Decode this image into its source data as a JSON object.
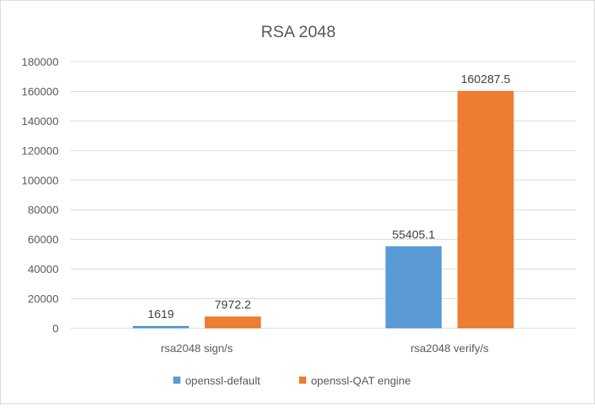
{
  "chart_data": {
    "type": "bar",
    "title": "RSA 2048",
    "categories": [
      "rsa2048 sign/s",
      "rsa2048 verify/s"
    ],
    "series": [
      {
        "name": "openssl-default",
        "values": [
          1619,
          55405.1
        ],
        "labels": [
          "1619",
          "55405.1"
        ],
        "color": "#5B9BD5"
      },
      {
        "name": "openssl-QAT engine",
        "values": [
          7972.2,
          160287.5
        ],
        "labels": [
          "7972.2",
          "160287.5"
        ],
        "color": "#ED7D31"
      }
    ],
    "ylim": [
      0,
      180000
    ],
    "yticks": [
      0,
      20000,
      40000,
      60000,
      80000,
      100000,
      120000,
      140000,
      160000,
      180000
    ],
    "xlabel": "",
    "ylabel": "",
    "grid": true,
    "legend_position": "bottom"
  }
}
